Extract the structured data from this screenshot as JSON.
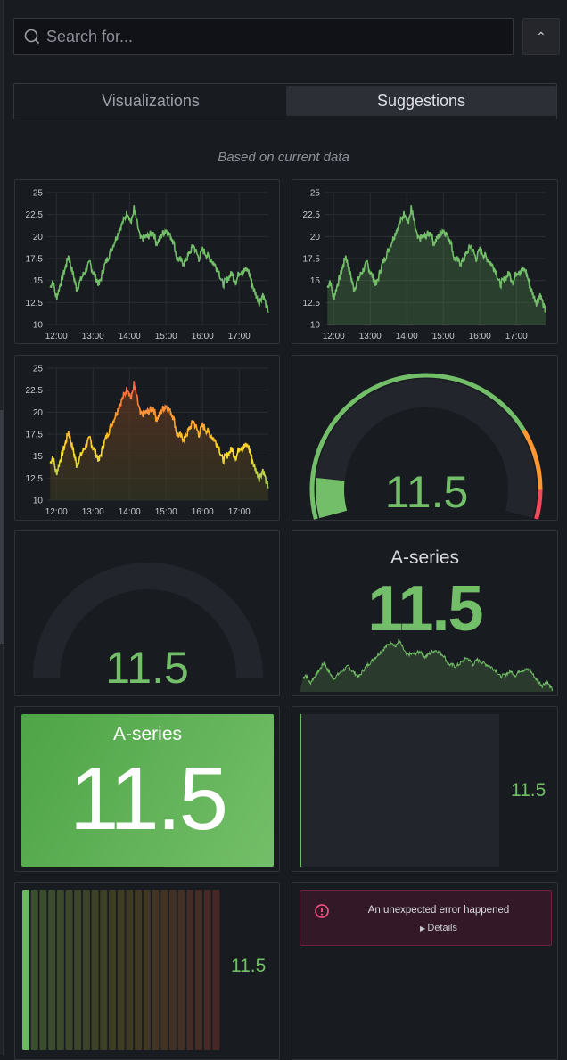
{
  "search": {
    "placeholder": "Search for..."
  },
  "tabs": [
    {
      "label": "Visualizations",
      "active": false
    },
    {
      "label": "Suggestions",
      "active": true
    }
  ],
  "subtitle": "Based on current data",
  "colors": {
    "green": "#73bf69",
    "orange": "#ff9830",
    "red": "#f2495c",
    "yellow": "#fade2a"
  },
  "chart_data": {
    "type": "line",
    "y_ticks": [
      "10",
      "12.5",
      "15",
      "17.5",
      "20",
      "22.5",
      "25"
    ],
    "ylim": [
      10,
      25
    ],
    "x_ticks": [
      "12:00",
      "13:00",
      "14:00",
      "15:00",
      "16:00",
      "17:00"
    ],
    "xlim_hours": [
      11.75,
      17.8
    ],
    "series": [
      {
        "name": "A-series",
        "x_hours": [
          11.83,
          11.9,
          12.0,
          12.1,
          12.25,
          12.33,
          12.5,
          12.55,
          12.75,
          12.92,
          13.0,
          13.17,
          13.3,
          13.5,
          13.75,
          13.95,
          14.05,
          14.12,
          14.3,
          14.5,
          14.65,
          14.75,
          14.9,
          15.0,
          15.2,
          15.3,
          15.5,
          15.75,
          15.9,
          16.0,
          16.3,
          16.45,
          16.55,
          16.8,
          16.92,
          17.0,
          17.25,
          17.4,
          17.55,
          17.65,
          17.75,
          17.8
        ],
        "values": [
          14.2,
          15,
          13,
          14.5,
          16.5,
          17.8,
          15,
          14,
          15.8,
          17,
          16,
          14.5,
          16.5,
          18.5,
          21,
          22.8,
          21.5,
          23.2,
          19.7,
          20,
          20.5,
          19.2,
          20.3,
          20.8,
          19.5,
          17.5,
          17,
          19,
          17.5,
          18.5,
          17,
          16,
          14.5,
          15.8,
          14.8,
          16,
          16.2,
          14,
          12.5,
          13.5,
          12,
          11.5
        ]
      }
    ]
  },
  "suggestions": {
    "gauge": {
      "value": "11.5",
      "min": 10,
      "max": 25
    },
    "gauge_plain": {
      "value": "11.5"
    },
    "stat_sparkline": {
      "title": "A-series",
      "value": "11.5"
    },
    "stat_background": {
      "title": "A-series",
      "value": "11.5"
    },
    "bargauge_basic": {
      "value": "11.5"
    },
    "bargauge_lcd": {
      "value": "11.5"
    },
    "error": {
      "message": "An unexpected error happened",
      "details": "Details"
    }
  }
}
